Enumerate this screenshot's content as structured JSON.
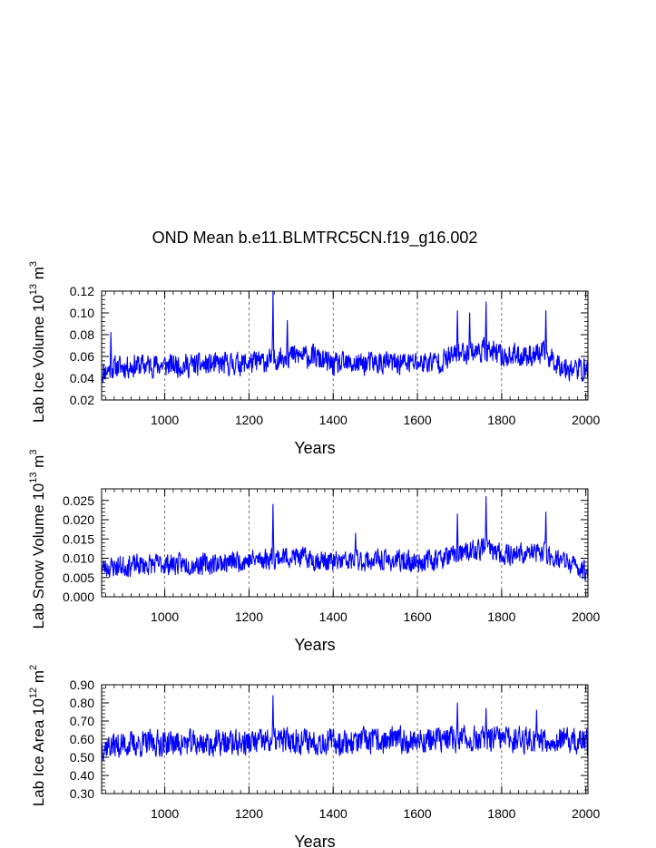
{
  "title": "OND Mean b.e11.BLMTRC5CN.f19_g16.002",
  "chart_data": [
    {
      "type": "line",
      "ylabel": {
        "text": "Lab Ice Volume",
        "base": "10",
        "exp": "13",
        "unit": "m",
        "unit_exp": "3"
      },
      "xlabel": "Years",
      "xlim": [
        850,
        2005
      ],
      "ylim": [
        0.02,
        0.12
      ],
      "xticks": [
        1000,
        1200,
        1400,
        1600,
        1800,
        2000
      ],
      "yticks": [
        "0.02",
        "0.04",
        "0.06",
        "0.08",
        "0.10",
        "0.12"
      ],
      "gridlines_x": [
        1000,
        1200,
        1400,
        1600,
        1800
      ],
      "color": "#0000ff",
      "series": {
        "name": "Lab Ice Volume",
        "anchors": [
          [
            850,
            0.045
          ],
          [
            880,
            0.05
          ],
          [
            950,
            0.052
          ],
          [
            1100,
            0.052
          ],
          [
            1200,
            0.054
          ],
          [
            1250,
            0.056
          ],
          [
            1290,
            0.061
          ],
          [
            1350,
            0.06
          ],
          [
            1400,
            0.052
          ],
          [
            1500,
            0.054
          ],
          [
            1600,
            0.054
          ],
          [
            1660,
            0.056
          ],
          [
            1700,
            0.063
          ],
          [
            1760,
            0.066
          ],
          [
            1800,
            0.06
          ],
          [
            1900,
            0.062
          ],
          [
            1950,
            0.05
          ],
          [
            2005,
            0.047
          ]
        ],
        "spikes": [
          [
            872,
            0.082
          ],
          [
            1257,
            0.12
          ],
          [
            1291,
            0.093
          ],
          [
            1695,
            0.102
          ],
          [
            1763,
            0.11
          ],
          [
            1905,
            0.102
          ],
          [
            1724,
            0.1
          ]
        ],
        "noise": 0.0085,
        "seed": 11
      }
    },
    {
      "type": "line",
      "ylabel": {
        "text": "Lab Snow Volume",
        "base": "10",
        "exp": "13",
        "unit": "m",
        "unit_exp": "3"
      },
      "xlabel": "Years",
      "xlim": [
        850,
        2005
      ],
      "ylim": [
        0.0,
        0.028
      ],
      "xticks": [
        1000,
        1200,
        1400,
        1600,
        1800,
        2000
      ],
      "yticks": [
        "0.000",
        "0.005",
        "0.010",
        "0.015",
        "0.020",
        "0.025"
      ],
      "gridlines_x": [
        1000,
        1200,
        1400,
        1600,
        1800
      ],
      "color": "#0000ff",
      "series": {
        "name": "Lab Snow Volume",
        "anchors": [
          [
            850,
            0.0075
          ],
          [
            900,
            0.008
          ],
          [
            1000,
            0.0085
          ],
          [
            1100,
            0.0085
          ],
          [
            1200,
            0.0095
          ],
          [
            1300,
            0.0105
          ],
          [
            1400,
            0.009
          ],
          [
            1500,
            0.0095
          ],
          [
            1600,
            0.009
          ],
          [
            1680,
            0.0105
          ],
          [
            1760,
            0.0125
          ],
          [
            1800,
            0.011
          ],
          [
            1900,
            0.0115
          ],
          [
            1960,
            0.0085
          ],
          [
            2005,
            0.0065
          ]
        ],
        "spikes": [
          [
            1257,
            0.024
          ],
          [
            1763,
            0.026
          ],
          [
            1695,
            0.0215
          ],
          [
            1905,
            0.022
          ],
          [
            1453,
            0.0165
          ]
        ],
        "noise": 0.0022,
        "seed": 23
      }
    },
    {
      "type": "line",
      "ylabel": {
        "text": "Lab Ice Area",
        "base": "10",
        "exp": "12",
        "unit": "m",
        "unit_exp": "2"
      },
      "xlabel": "Years",
      "xlim": [
        850,
        2005
      ],
      "ylim": [
        0.3,
        0.9
      ],
      "xticks": [
        1000,
        1200,
        1400,
        1600,
        1800,
        2000
      ],
      "yticks": [
        "0.30",
        "0.40",
        "0.50",
        "0.60",
        "0.70",
        "0.80",
        "0.90"
      ],
      "gridlines_x": [
        1000,
        1200,
        1400,
        1600,
        1800
      ],
      "color": "#0000ff",
      "series": {
        "name": "Lab Ice Area",
        "anchors": [
          [
            850,
            0.56
          ],
          [
            900,
            0.57
          ],
          [
            1000,
            0.58
          ],
          [
            1100,
            0.575
          ],
          [
            1200,
            0.58
          ],
          [
            1300,
            0.595
          ],
          [
            1400,
            0.585
          ],
          [
            1500,
            0.59
          ],
          [
            1600,
            0.595
          ],
          [
            1700,
            0.6
          ],
          [
            1800,
            0.6
          ],
          [
            1900,
            0.6
          ],
          [
            2005,
            0.58
          ]
        ],
        "spikes": [
          [
            1257,
            0.84
          ],
          [
            1695,
            0.8
          ],
          [
            1763,
            0.77
          ],
          [
            1883,
            0.76
          ]
        ],
        "noise": 0.058,
        "seed": 37
      }
    }
  ]
}
